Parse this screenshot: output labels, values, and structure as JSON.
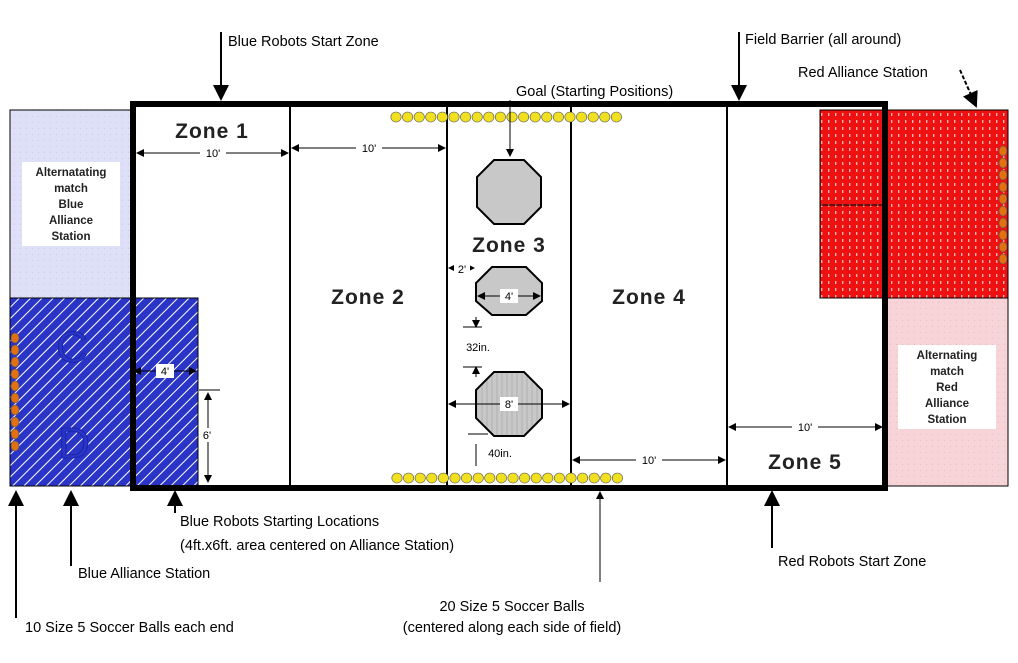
{
  "callouts": {
    "blue_start_zone": "Blue Robots Start Zone",
    "field_barrier": "Field Barrier (all around)",
    "red_station": "Red Alliance Station",
    "goal": "Goal (Starting Positions)",
    "blue_start_locations_1": "Blue Robots Starting Locations",
    "blue_start_locations_2": "(4ft.x6ft. area centered on Alliance Station)",
    "blue_station": "Blue Alliance Station",
    "balls_each_end": "10 Size 5 Soccer Balls each end",
    "balls_20_1": "20 Size 5 Soccer Balls",
    "balls_20_2": "(centered along each side of field)",
    "red_start_zone": "Red Robots Start Zone"
  },
  "zones": {
    "z1": "Zone 1",
    "z2": "Zone 2",
    "z3": "Zone 3",
    "z4": "Zone 4",
    "z5": "Zone 5"
  },
  "stations": {
    "blue_alt": [
      "Alternatating",
      "match",
      "Blue",
      "Alliance",
      "Station"
    ],
    "red_alt": [
      "Alternating",
      "match",
      "Red",
      "Alliance",
      "Station"
    ],
    "blue_letters": [
      "C",
      "D"
    ]
  },
  "dimensions": {
    "d_zone1": "10'",
    "d_zone2": "10'",
    "d_zone4": "10'",
    "d_zone5": "10'",
    "d_2ft": "2'",
    "d_4ft_goal": "4'",
    "d_8ft_goal": "8'",
    "d_32in": "32in.",
    "d_40in": "40in.",
    "d_4ft_start": "4'",
    "d_6ft_start": "6'"
  },
  "colors": {
    "blue_station": "#2233cc",
    "blue_alt_fill": "#dde0f7",
    "red_station": "#ee1111",
    "red_alt_fill": "#f7d4d8",
    "ball_yellow": "#f0e020",
    "ball_orange": "#e07010",
    "goal_gray": "#c8c8c8"
  }
}
